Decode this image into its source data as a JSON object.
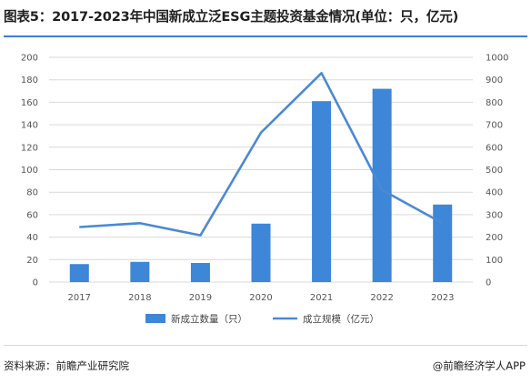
{
  "header": {
    "title": "图表5：2017-2023年中国新成立泛ESG主题投资基金情况(单位：只，亿元)"
  },
  "footer": {
    "source": "资料来源：前瞻产业研究院",
    "credit": "@前瞻经济学人APP"
  },
  "colors": {
    "accent": "#3a7dd6",
    "bar": "#3d86d8",
    "line": "#4a89d4",
    "grid": "#d9d9d9"
  },
  "chart_data": {
    "type": "bar",
    "categories": [
      "2017",
      "2018",
      "2019",
      "2020",
      "2021",
      "2022",
      "2023"
    ],
    "series": [
      {
        "name": "新成立数量（只）",
        "type": "bar",
        "axis": "left",
        "values": [
          16,
          18,
          17,
          52,
          161,
          172,
          69
        ]
      },
      {
        "name": "成立规模（亿元）",
        "type": "line",
        "axis": "right",
        "values": [
          245,
          262,
          208,
          665,
          930,
          410,
          262
        ]
      }
    ],
    "y_left": {
      "lim": [
        0,
        200
      ],
      "ticks": [
        "0",
        "20",
        "40",
        "60",
        "80",
        "100",
        "120",
        "140",
        "160",
        "180",
        "200"
      ]
    },
    "y_right": {
      "lim": [
        0,
        1000
      ],
      "ticks": [
        "0",
        "100",
        "200",
        "300",
        "400",
        "500",
        "600",
        "700",
        "800",
        "900",
        "1000"
      ]
    },
    "grid": true,
    "legend_position": "bottom"
  }
}
